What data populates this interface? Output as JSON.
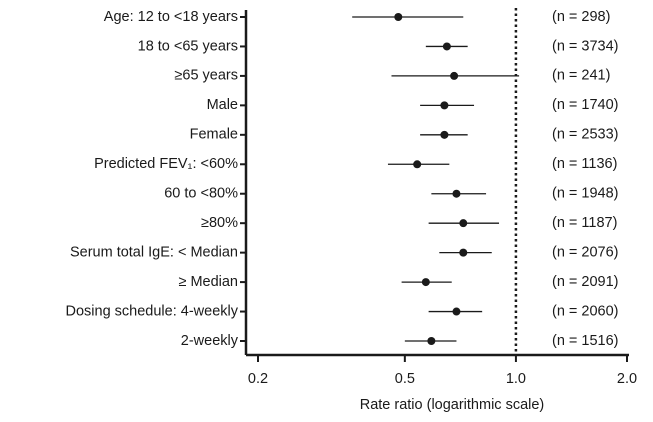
{
  "chart_data": {
    "type": "forest",
    "x_label": "Rate ratio (logarithmic scale)",
    "x_scale": "log",
    "xlim": [
      0.2,
      2.0
    ],
    "xticks": [
      0.2,
      0.5,
      {
        "value": 1.0,
        "label": "1.0"
      },
      {
        "value": 2.0,
        "label": "2.0"
      }
    ],
    "reference_line": 1.0,
    "color": "#1a1a1a",
    "categories": [
      "Age: 12 to <18 years",
      "18 to <65 years",
      "≥65 years",
      "Male",
      "Female",
      "Predicted FEV₁: <60%",
      "60 to <80%",
      "≥80%",
      "Serum total IgE: < Median",
      "≥ Median",
      "Dosing schedule: 4-weekly",
      "2-weekly"
    ],
    "values": [
      0.48,
      0.65,
      0.68,
      0.64,
      0.64,
      0.54,
      0.69,
      0.72,
      0.72,
      0.57,
      0.69,
      0.59
    ],
    "low": [
      0.36,
      0.57,
      0.46,
      0.55,
      0.55,
      0.45,
      0.59,
      0.58,
      0.62,
      0.49,
      0.58,
      0.5
    ],
    "high": [
      0.72,
      0.74,
      1.02,
      0.77,
      0.74,
      0.66,
      0.83,
      0.9,
      0.86,
      0.67,
      0.81,
      0.69
    ],
    "sample_labels": [
      "(n = 298)",
      "(n = 3734)",
      "(n = 241)",
      "(n = 1740)",
      "(n = 2533)",
      "(n = 1136)",
      "(n = 1948)",
      "(n = 1187)",
      "(n = 2076)",
      "(n = 2091)",
      "(n = 2060)",
      "(n = 1516)"
    ]
  }
}
